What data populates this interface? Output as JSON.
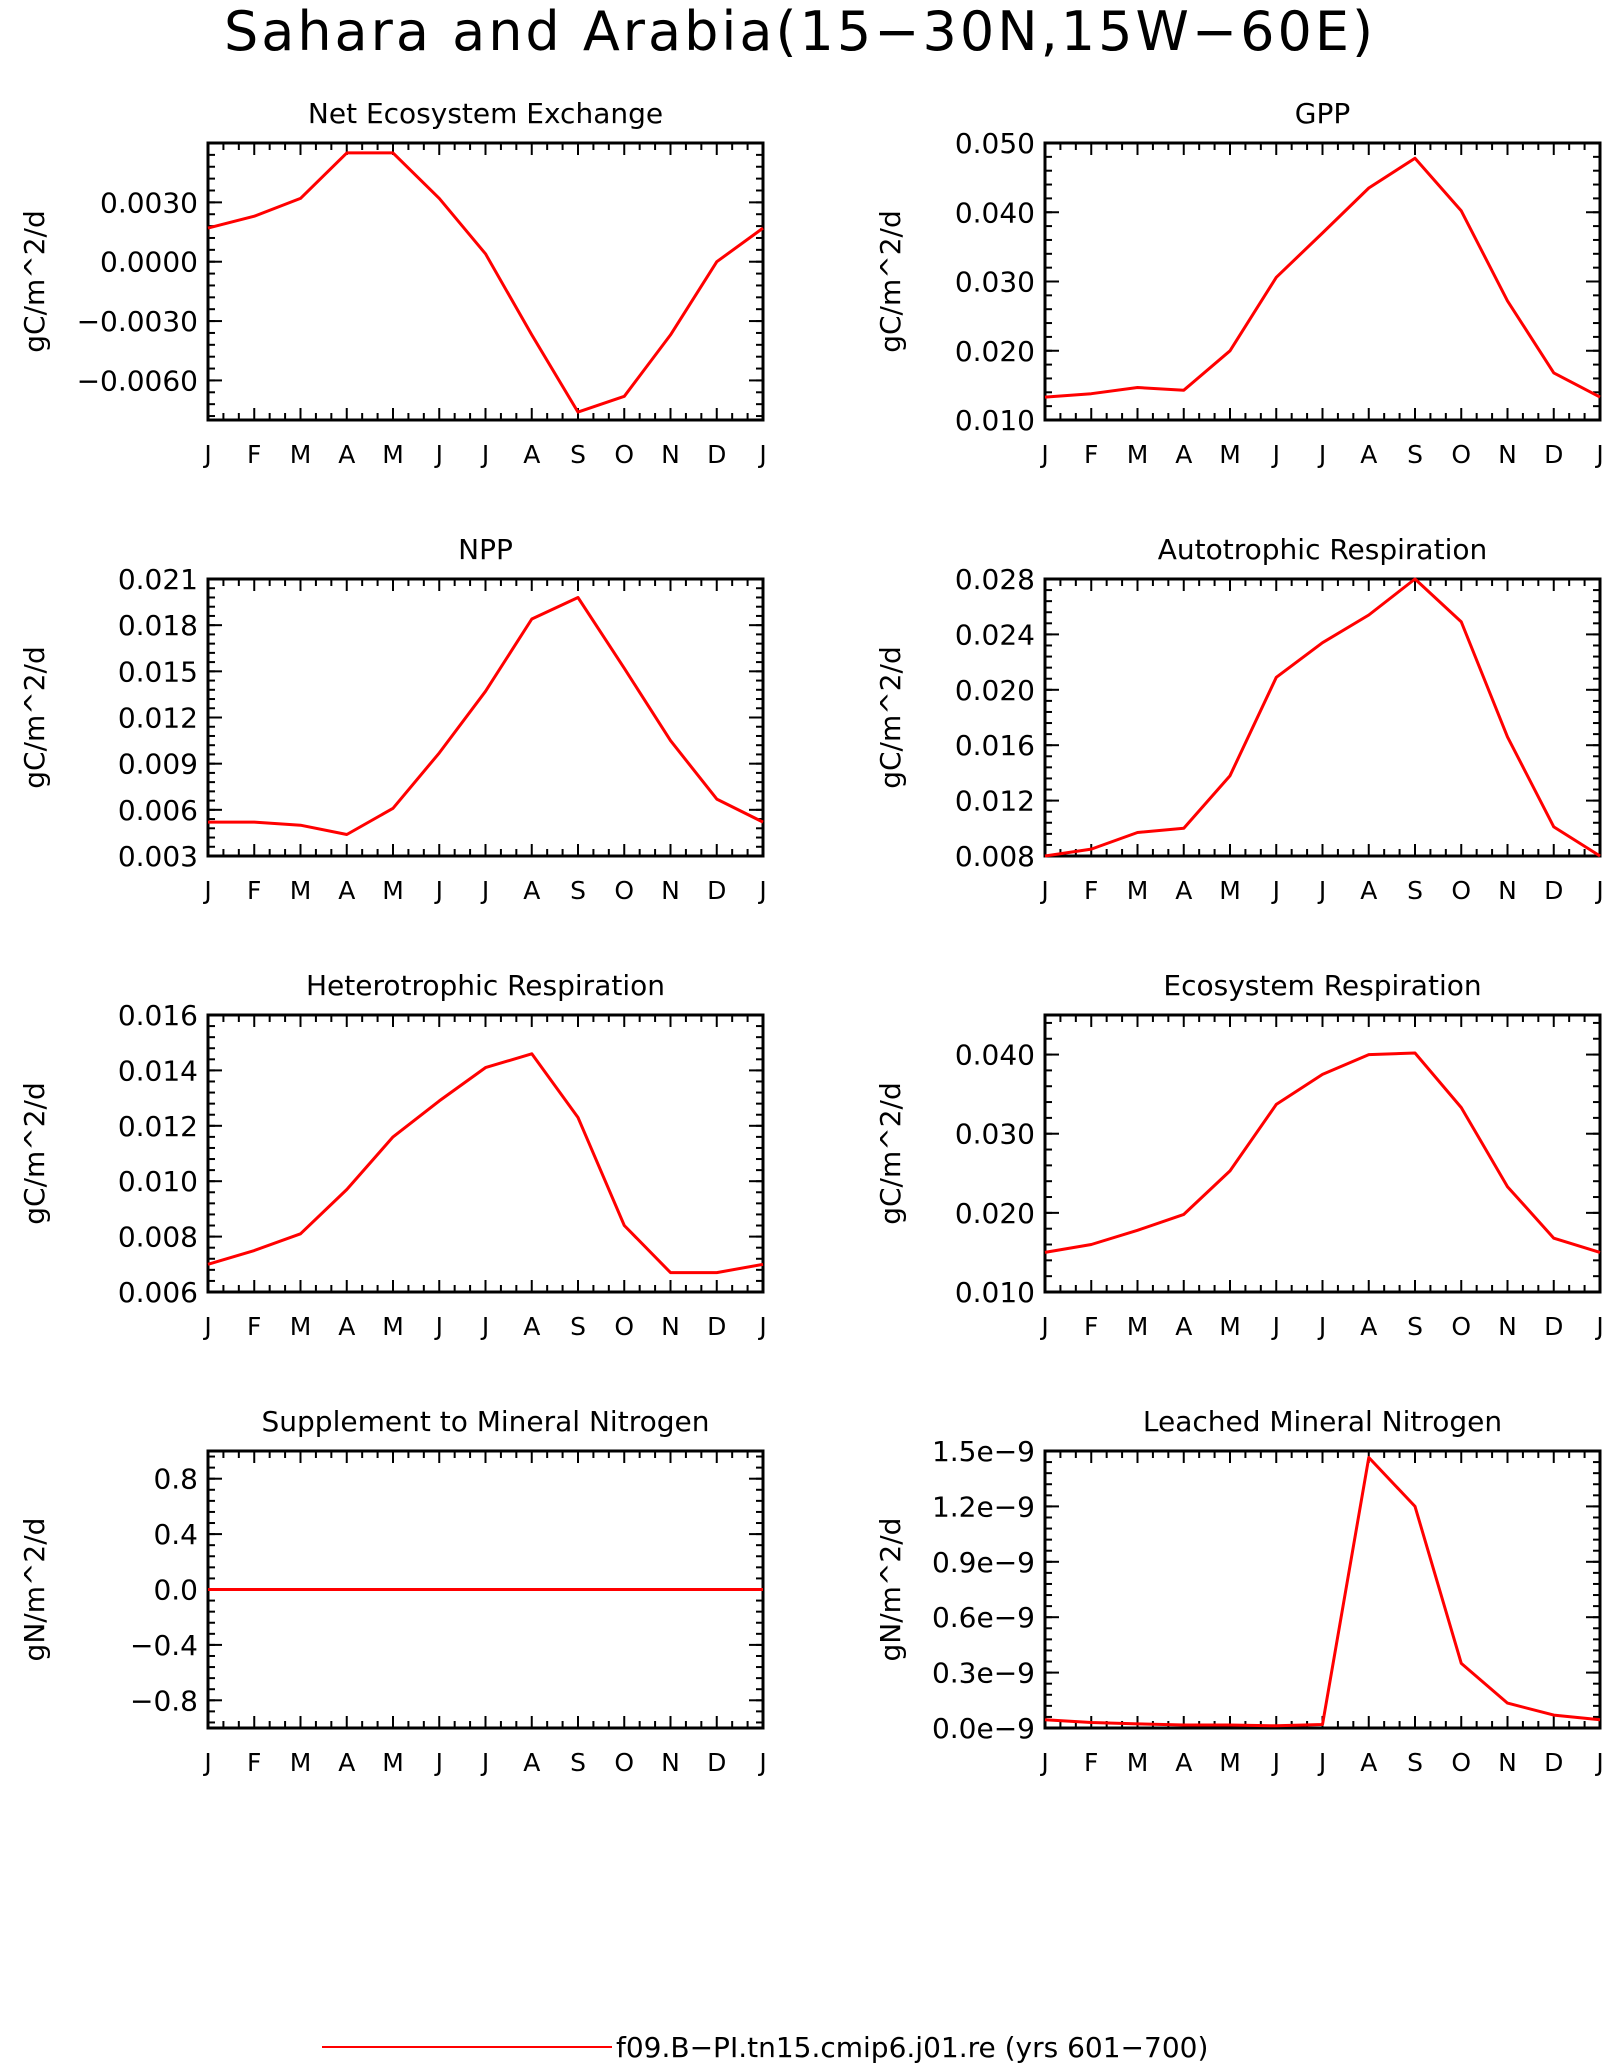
{
  "figure": {
    "title": "Sahara and Arabia(15−30N,15W−60E)",
    "legend": {
      "label": "f09.B−PI.tn15.cmip6.j01.re (yrs 601−700)",
      "color": "#ff0000"
    },
    "line_color": "#ff0000"
  },
  "chart_data": [
    {
      "type": "line",
      "title": "Net Ecosystem Exchange",
      "ylabel": "gC/m^2/d",
      "categories": [
        "J",
        "F",
        "M",
        "A",
        "M",
        "J",
        "J",
        "A",
        "S",
        "O",
        "N",
        "D",
        "J"
      ],
      "ylim": [
        -0.008,
        0.006
      ],
      "yticks": [
        0.003,
        0.0,
        -0.003,
        -0.006
      ],
      "yticklabels": [
        "0.0030",
        "0.0000",
        "−0.0030",
        "−0.0060"
      ],
      "series": [
        {
          "values": [
            0.0017,
            0.0023,
            0.0032,
            0.0055,
            0.0055,
            0.0032,
            0.0004,
            -0.0037,
            -0.0076,
            -0.0068,
            -0.0037,
            0.0,
            0.0017
          ]
        }
      ]
    },
    {
      "type": "line",
      "title": "GPP",
      "ylabel": "gC/m^2/d",
      "categories": [
        "J",
        "F",
        "M",
        "A",
        "M",
        "J",
        "J",
        "A",
        "S",
        "O",
        "N",
        "D",
        "J"
      ],
      "ylim": [
        0.01,
        0.05
      ],
      "yticks": [
        0.05,
        0.04,
        0.03,
        0.02,
        0.01
      ],
      "yticklabels": [
        "0.050",
        "0.040",
        "0.030",
        "0.020",
        "0.010"
      ],
      "series": [
        {
          "values": [
            0.0133,
            0.0138,
            0.0147,
            0.0143,
            0.02,
            0.0306,
            0.037,
            0.0435,
            0.0478,
            0.0402,
            0.0272,
            0.0168,
            0.0133
          ]
        }
      ]
    },
    {
      "type": "line",
      "title": "NPP",
      "ylabel": "gC/m^2/d",
      "categories": [
        "J",
        "F",
        "M",
        "A",
        "M",
        "J",
        "J",
        "A",
        "S",
        "O",
        "N",
        "D",
        "J"
      ],
      "ylim": [
        0.003,
        0.021
      ],
      "yticks": [
        0.021,
        0.018,
        0.015,
        0.012,
        0.009,
        0.006,
        0.003
      ],
      "yticklabels": [
        "0.021",
        "0.018",
        "0.015",
        "0.012",
        "0.009",
        "0.006",
        "0.003"
      ],
      "series": [
        {
          "values": [
            0.0052,
            0.0052,
            0.005,
            0.0044,
            0.0061,
            0.0097,
            0.0137,
            0.0184,
            0.0198,
            0.0152,
            0.0105,
            0.0067,
            0.0052
          ]
        }
      ]
    },
    {
      "type": "line",
      "title": "Autotrophic Respiration",
      "ylabel": "gC/m^2/d",
      "categories": [
        "J",
        "F",
        "M",
        "A",
        "M",
        "J",
        "J",
        "A",
        "S",
        "O",
        "N",
        "D",
        "J"
      ],
      "ylim": [
        0.008,
        0.028
      ],
      "yticks": [
        0.028,
        0.024,
        0.02,
        0.016,
        0.012,
        0.008
      ],
      "yticklabels": [
        "0.028",
        "0.024",
        "0.020",
        "0.016",
        "0.012",
        "0.008"
      ],
      "series": [
        {
          "values": [
            0.008,
            0.0085,
            0.0097,
            0.01,
            0.0138,
            0.0209,
            0.0234,
            0.0254,
            0.028,
            0.0249,
            0.0166,
            0.0101,
            0.008
          ]
        }
      ]
    },
    {
      "type": "line",
      "title": "Heterotrophic Respiration",
      "ylabel": "gC/m^2/d",
      "categories": [
        "J",
        "F",
        "M",
        "A",
        "M",
        "J",
        "J",
        "A",
        "S",
        "O",
        "N",
        "D",
        "J"
      ],
      "ylim": [
        0.006,
        0.016
      ],
      "yticks": [
        0.016,
        0.014,
        0.012,
        0.01,
        0.008,
        0.006
      ],
      "yticklabels": [
        "0.016",
        "0.014",
        "0.012",
        "0.010",
        "0.008",
        "0.006"
      ],
      "series": [
        {
          "values": [
            0.007,
            0.0075,
            0.0081,
            0.0097,
            0.0116,
            0.0129,
            0.0141,
            0.0146,
            0.0123,
            0.0084,
            0.0067,
            0.0067,
            0.007
          ]
        }
      ]
    },
    {
      "type": "line",
      "title": "Ecosystem Respiration",
      "ylabel": "gC/m^2/d",
      "categories": [
        "J",
        "F",
        "M",
        "A",
        "M",
        "J",
        "J",
        "A",
        "S",
        "O",
        "N",
        "D",
        "J"
      ],
      "ylim": [
        0.01,
        0.045
      ],
      "yticks": [
        0.04,
        0.03,
        0.02,
        0.01
      ],
      "yticklabels": [
        "0.040",
        "0.030",
        "0.020",
        "0.010"
      ],
      "series": [
        {
          "values": [
            0.015,
            0.016,
            0.0178,
            0.0198,
            0.0253,
            0.0337,
            0.0375,
            0.04,
            0.0402,
            0.0333,
            0.0233,
            0.0168,
            0.015
          ]
        }
      ]
    },
    {
      "type": "line",
      "title": "Supplement to Mineral Nitrogen",
      "ylabel": "gN/m^2/d",
      "categories": [
        "J",
        "F",
        "M",
        "A",
        "M",
        "J",
        "J",
        "A",
        "S",
        "O",
        "N",
        "D",
        "J"
      ],
      "ylim": [
        -1.0,
        1.0
      ],
      "yticks": [
        0.8,
        0.4,
        0.0,
        -0.4,
        -0.8
      ],
      "yticklabels": [
        "0.8",
        "0.4",
        "0.0",
        "−0.4",
        "−0.8"
      ],
      "series": [
        {
          "values": [
            0,
            0,
            0,
            0,
            0,
            0,
            0,
            0,
            0,
            0,
            0,
            0,
            0
          ]
        }
      ]
    },
    {
      "type": "line",
      "title": "Leached Mineral Nitrogen",
      "ylabel": "gN/m^2/d",
      "categories": [
        "J",
        "F",
        "M",
        "A",
        "M",
        "J",
        "J",
        "A",
        "S",
        "O",
        "N",
        "D",
        "J"
      ],
      "ylim": [
        0.0,
        1.5e-09
      ],
      "yticks": [
        1.5e-09,
        1.2e-09,
        9e-10,
        6e-10,
        3e-10,
        0.0
      ],
      "yticklabels": [
        "1.5e−9",
        "1.2e−9",
        "0.9e−9",
        "0.6e−9",
        "0.3e−9",
        "0.0e−9"
      ],
      "series": [
        {
          "values": [
            4.5e-11,
            3e-11,
            2.2e-11,
            1.6e-11,
            1.6e-11,
            1.2e-11,
            1.9e-11,
            1.465e-09,
            1.2e-09,
            3.5e-10,
            1.35e-10,
            7e-11,
            4.5e-11
          ]
        }
      ]
    }
  ]
}
